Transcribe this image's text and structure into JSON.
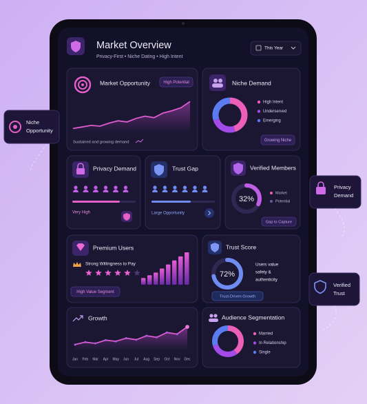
{
  "header": {
    "title": "Market Overview",
    "subtitle": "Privacy-First • Niche Dating • High Intent",
    "period": "This Year"
  },
  "market_opportunity": {
    "title": "Market Opportunity",
    "badge": "High Potential",
    "caption": "Sustained and growing demand",
    "trend": [
      10,
      14,
      18,
      16,
      24,
      30,
      27,
      36,
      42,
      38,
      50,
      56,
      64,
      80
    ],
    "ylim": [
      0,
      100
    ]
  },
  "niche_demand": {
    "title": "Niche Demand",
    "button": "Growing Niche",
    "segments": [
      {
        "label": "High Intent",
        "color": "#ec5fb8",
        "share": 45
      },
      {
        "label": "Underserved",
        "color": "#a24be8",
        "share": 25
      },
      {
        "label": "Emerging",
        "color": "#5b7cf0",
        "share": 30
      }
    ]
  },
  "privacy_demand": {
    "title": "Privacy Demand",
    "level": "Very High",
    "meter": {
      "value": 75,
      "scale": [
        0,
        100
      ]
    }
  },
  "trust_gap": {
    "title": "Trust Gap",
    "level": "Large Opportunity",
    "meter": {
      "value": 62,
      "scale": [
        0,
        100
      ]
    }
  },
  "verified_members": {
    "title": "Verified Members",
    "ring": {
      "value": 32,
      "label": "32%",
      "scale": [
        0,
        100
      ]
    },
    "legend": [
      "Market",
      "Potential"
    ],
    "button": "Gap to Capture"
  },
  "premium_users": {
    "title": "Premium Users",
    "note": "Strong Willingness to Pay",
    "badge": "High Value Segment",
    "bars": [
      10,
      14,
      18,
      24,
      30,
      36,
      42,
      48
    ],
    "ylim": [
      0,
      50
    ]
  },
  "trust_score": {
    "title": "Trust Score",
    "ring": {
      "value": 72,
      "label": "72%",
      "scale": [
        0,
        100
      ]
    },
    "note_lines": [
      "Users value",
      "safety &",
      "authenticity"
    ],
    "button": "Trust-Driven Growth"
  },
  "growth": {
    "title": "Growth",
    "categories": [
      "Jan",
      "Feb",
      "Mar",
      "Apr",
      "May",
      "Jun",
      "Jul",
      "Aug",
      "Sep",
      "Oct",
      "Nov",
      "Dec"
    ],
    "values": [
      14,
      20,
      17,
      25,
      22,
      30,
      26,
      36,
      32,
      44,
      40,
      58
    ],
    "ylim": [
      0,
      65
    ]
  },
  "audience_segmentation": {
    "title": "Audience Segmentation",
    "segments": [
      {
        "label": "Married",
        "color": "#ec5fb8",
        "share": 40
      },
      {
        "label": "In Relationship",
        "color": "#a24be8",
        "share": 30
      },
      {
        "label": "Single",
        "color": "#5b7cf0",
        "share": 30
      }
    ]
  },
  "badges": {
    "niche": [
      "Niche",
      "Opportunity"
    ],
    "privacy": [
      "Privacy",
      "Demand"
    ],
    "trust": [
      "Verified",
      "Trust"
    ]
  }
}
